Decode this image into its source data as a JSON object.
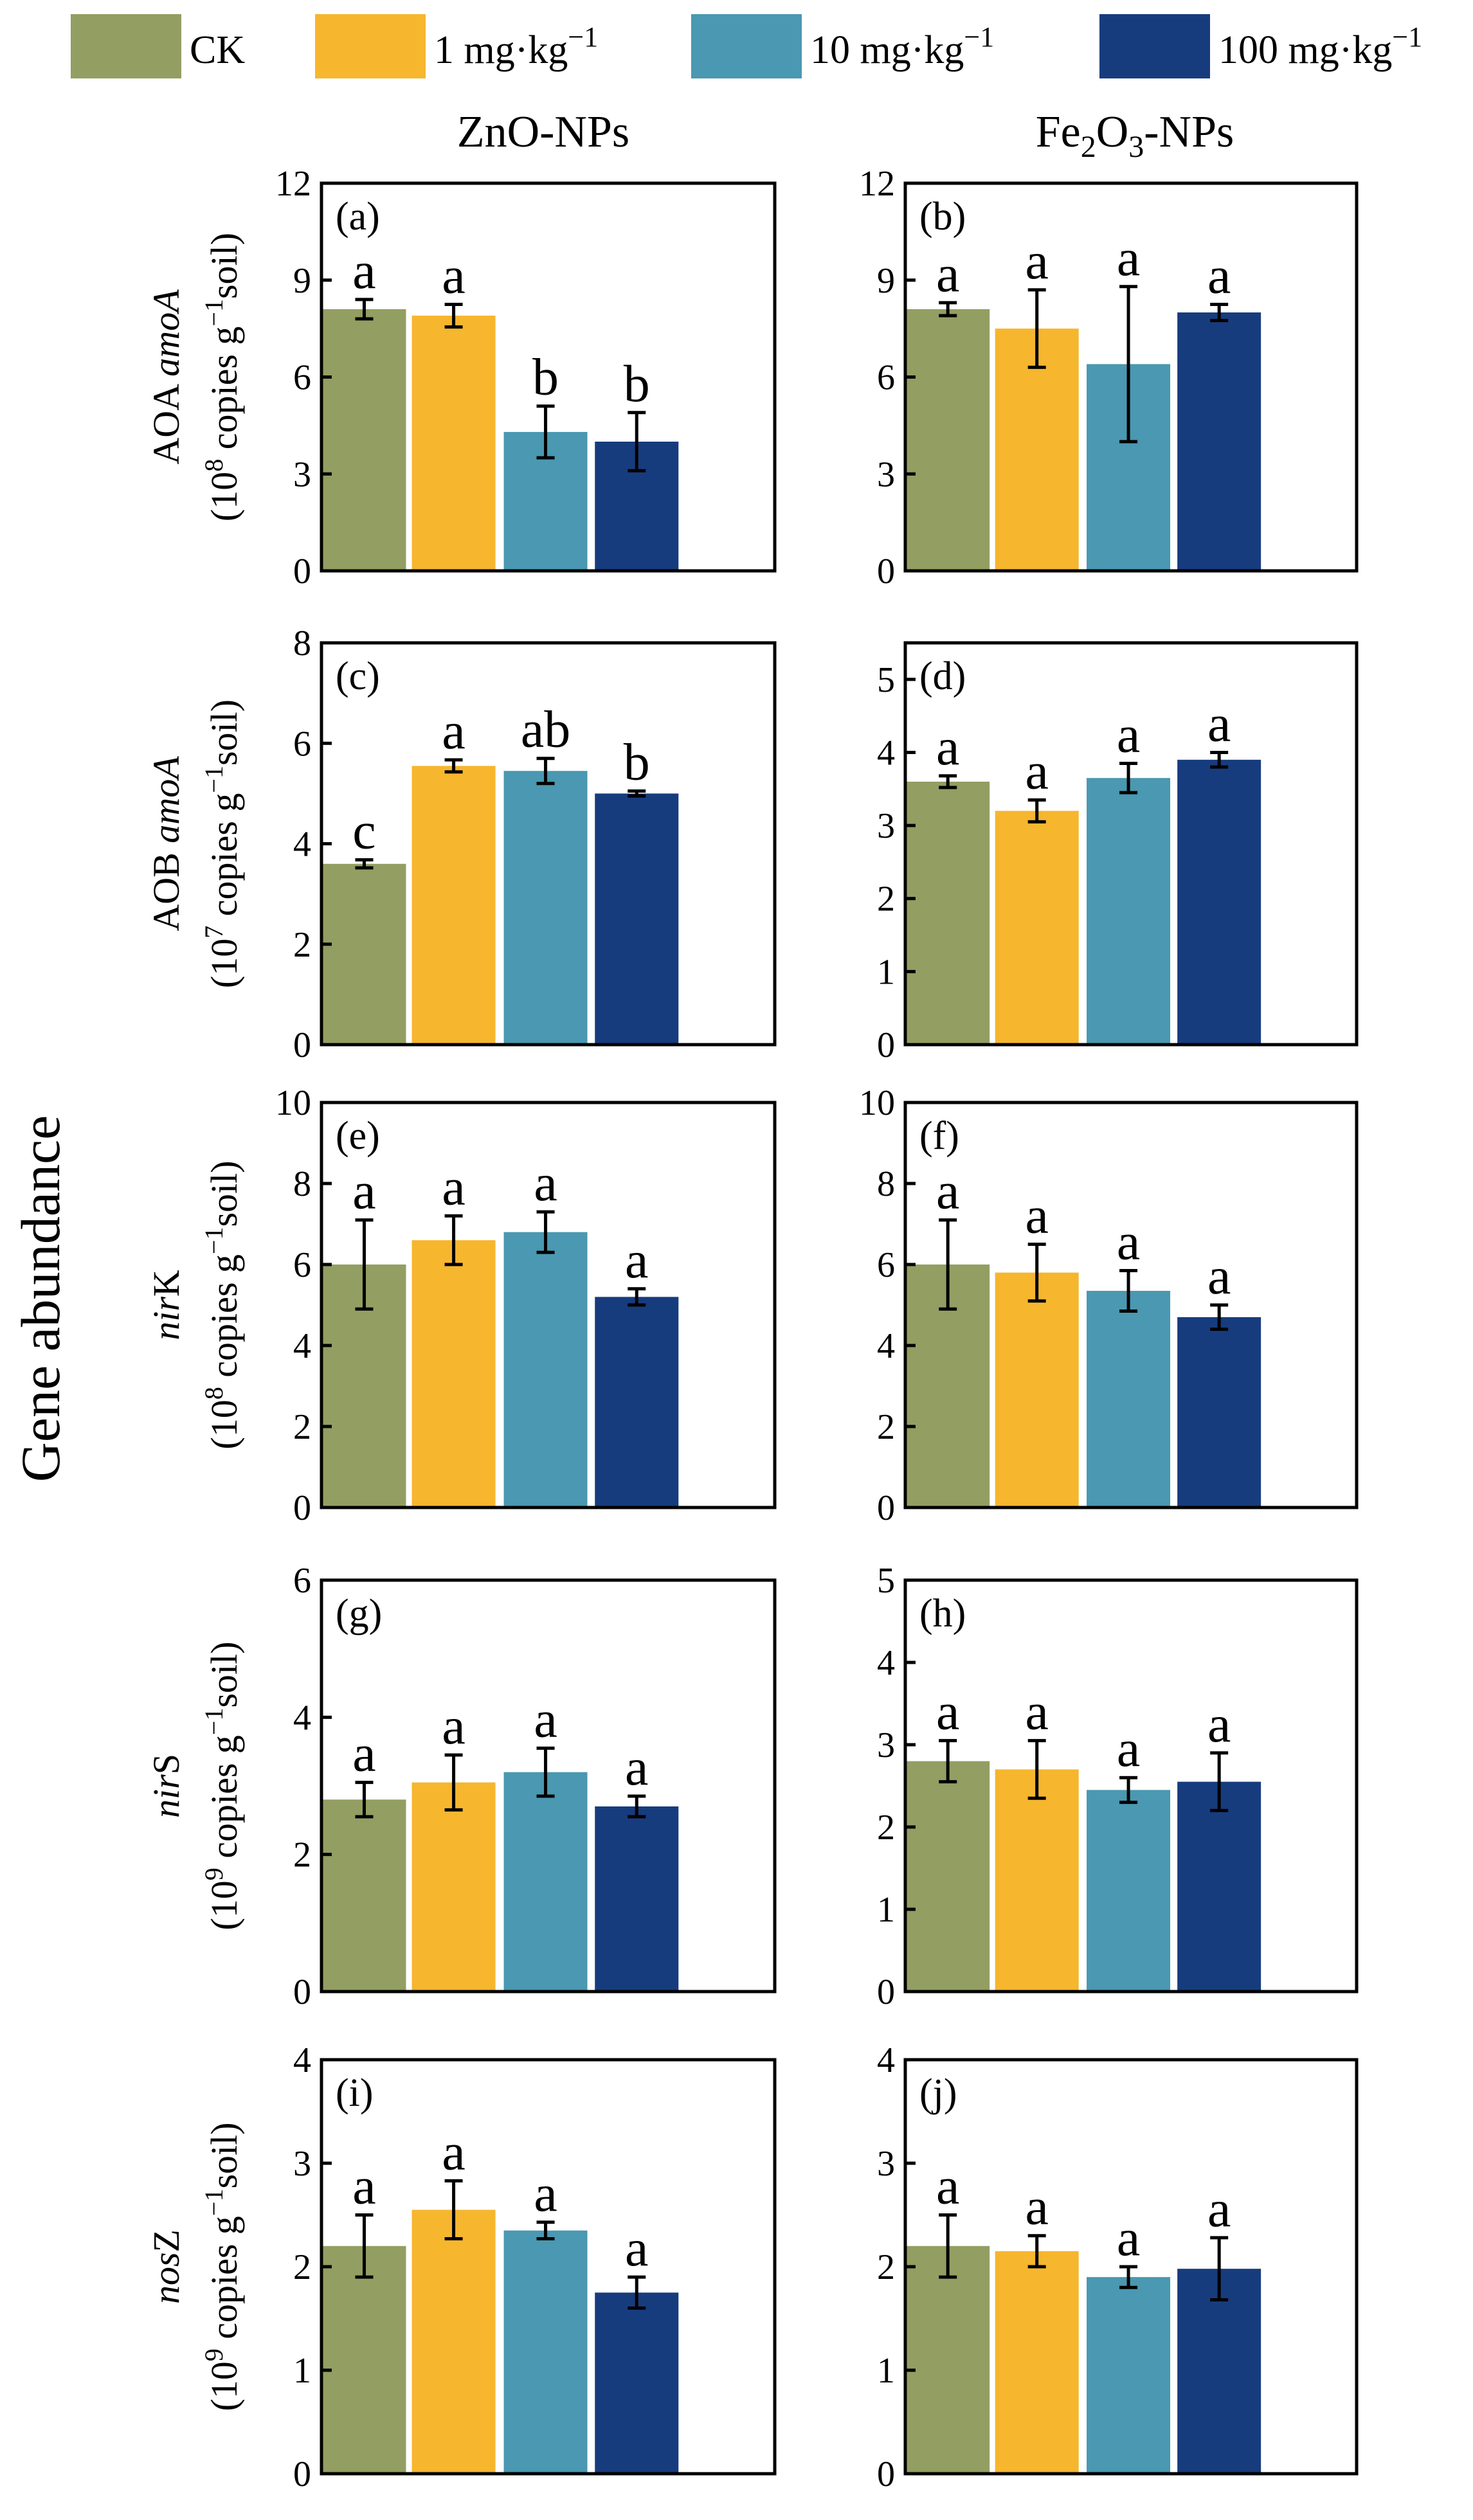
{
  "legend": [
    {
      "label": "CK",
      "color": "#939E62"
    },
    {
      "label": "1 mg·kg",
      "sup": "−1",
      "color": "#F6B62E"
    },
    {
      "label": "10 mg·kg",
      "sup": "−1",
      "color": "#4A98B1"
    },
    {
      "label": "100 mg·kg",
      "sup": "−1",
      "color": "#173C7E"
    }
  ],
  "column_titles": {
    "left": "ZnO-NPs",
    "right_prefix": "Fe",
    "right_sub1": "2",
    "right_mid": "O",
    "right_sub2": "3",
    "right_suffix": "-NPs"
  },
  "gene_abundance_title": "Gene abundance",
  "row_labels": [
    {
      "gene_pre": "AOA ",
      "gene_italic": "amoA",
      "gene_post": "",
      "unit_exp": "8"
    },
    {
      "gene_pre": "AOB ",
      "gene_italic": "amoA",
      "gene_post": "",
      "unit_exp": "7"
    },
    {
      "gene_pre": "",
      "gene_italic": "nir",
      "gene_post": "K",
      "unit_exp": "8"
    },
    {
      "gene_pre": "",
      "gene_italic": "nir",
      "gene_post": "S",
      "unit_exp": "9"
    },
    {
      "gene_pre": "",
      "gene_italic": "nos",
      "gene_post": "Z",
      "unit_exp": "9"
    }
  ],
  "unit_text": {
    "open": "(10",
    "middle": " copies g",
    "sup": "−1",
    "close": "soil)"
  },
  "chart_data": [
    {
      "panel": "(a)",
      "type": "bar",
      "categories": [
        "CK",
        "1 mg·kg−1",
        "10 mg·kg−1",
        "100 mg·kg−1"
      ],
      "values": [
        8.1,
        7.9,
        4.3,
        4.0
      ],
      "errors": [
        0.3,
        0.35,
        0.8,
        0.9
      ],
      "letters": [
        "a",
        "a",
        "b",
        "b"
      ],
      "ylim": [
        0,
        12
      ],
      "yticks": [
        0,
        3,
        6,
        9,
        12
      ]
    },
    {
      "panel": "(b)",
      "type": "bar",
      "categories": [
        "CK",
        "1 mg·kg−1",
        "10 mg·kg−1",
        "100 mg·kg−1"
      ],
      "values": [
        8.1,
        7.5,
        6.4,
        8.0
      ],
      "errors": [
        0.2,
        1.2,
        2.4,
        0.25
      ],
      "letters": [
        "a",
        "a",
        "a",
        "a"
      ],
      "ylim": [
        0,
        12
      ],
      "yticks": [
        0,
        3,
        6,
        9,
        12
      ]
    },
    {
      "panel": "(c)",
      "type": "bar",
      "categories": [
        "CK",
        "1 mg·kg−1",
        "10 mg·kg−1",
        "100 mg·kg−1"
      ],
      "values": [
        3.6,
        5.55,
        5.45,
        5.0
      ],
      "errors": [
        0.08,
        0.12,
        0.25,
        0.05
      ],
      "letters": [
        "c",
        "a",
        "ab",
        "b"
      ],
      "ylim": [
        0,
        8
      ],
      "yticks": [
        0,
        2,
        4,
        6,
        8
      ]
    },
    {
      "panel": "(d)",
      "type": "bar",
      "categories": [
        "CK",
        "1 mg·kg−1",
        "10 mg·kg−1",
        "100 mg·kg−1"
      ],
      "values": [
        3.6,
        3.2,
        3.65,
        3.9
      ],
      "errors": [
        0.08,
        0.15,
        0.2,
        0.1
      ],
      "letters": [
        "a",
        "a",
        "a",
        "a"
      ],
      "ylim": [
        0,
        5.5
      ],
      "yticks": [
        0,
        1,
        2,
        3,
        4,
        5
      ]
    },
    {
      "panel": "(e)",
      "type": "bar",
      "categories": [
        "CK",
        "1 mg·kg−1",
        "10 mg·kg−1",
        "100 mg·kg−1"
      ],
      "values": [
        6.0,
        6.6,
        6.8,
        5.2
      ],
      "errors": [
        1.1,
        0.6,
        0.5,
        0.2
      ],
      "letters": [
        "a",
        "a",
        "a",
        "a"
      ],
      "ylim": [
        0,
        10
      ],
      "yticks": [
        0,
        2,
        4,
        6,
        8,
        10
      ]
    },
    {
      "panel": "(f)",
      "type": "bar",
      "categories": [
        "CK",
        "1 mg·kg−1",
        "10 mg·kg−1",
        "100 mg·kg−1"
      ],
      "values": [
        6.0,
        5.8,
        5.35,
        4.7
      ],
      "errors": [
        1.1,
        0.7,
        0.5,
        0.3
      ],
      "letters": [
        "a",
        "a",
        "a",
        "a"
      ],
      "ylim": [
        0,
        10
      ],
      "yticks": [
        0,
        2,
        4,
        6,
        8,
        10
      ]
    },
    {
      "panel": "(g)",
      "type": "bar",
      "categories": [
        "CK",
        "1 mg·kg−1",
        "10 mg·kg−1",
        "100 mg·kg−1"
      ],
      "values": [
        2.8,
        3.05,
        3.2,
        2.7
      ],
      "errors": [
        0.25,
        0.4,
        0.35,
        0.15
      ],
      "letters": [
        "a",
        "a",
        "a",
        "a"
      ],
      "ylim": [
        0,
        6
      ],
      "yticks": [
        0,
        2,
        4,
        6
      ]
    },
    {
      "panel": "(h)",
      "type": "bar",
      "categories": [
        "CK",
        "1 mg·kg−1",
        "10 mg·kg−1",
        "100 mg·kg−1"
      ],
      "values": [
        2.8,
        2.7,
        2.45,
        2.55
      ],
      "errors": [
        0.25,
        0.35,
        0.15,
        0.35
      ],
      "letters": [
        "a",
        "a",
        "a",
        "a"
      ],
      "ylim": [
        0,
        5
      ],
      "yticks": [
        0,
        1,
        2,
        3,
        4,
        5
      ]
    },
    {
      "panel": "(i)",
      "type": "bar",
      "categories": [
        "CK",
        "1 mg·kg−1",
        "10 mg·kg−1",
        "100 mg·kg−1"
      ],
      "values": [
        2.2,
        2.55,
        2.35,
        1.75
      ],
      "errors": [
        0.3,
        0.28,
        0.08,
        0.15
      ],
      "letters": [
        "a",
        "a",
        "a",
        "a"
      ],
      "ylim": [
        0,
        4
      ],
      "yticks": [
        0,
        1,
        2,
        3,
        4
      ]
    },
    {
      "panel": "(j)",
      "type": "bar",
      "categories": [
        "CK",
        "1 mg·kg−1",
        "10 mg·kg−1",
        "100 mg·kg−1"
      ],
      "values": [
        2.2,
        2.15,
        1.9,
        1.98
      ],
      "errors": [
        0.3,
        0.15,
        0.1,
        0.3
      ],
      "letters": [
        "a",
        "a",
        "a",
        "a"
      ],
      "ylim": [
        0,
        4
      ],
      "yticks": [
        0,
        1,
        2,
        3,
        4
      ]
    }
  ]
}
